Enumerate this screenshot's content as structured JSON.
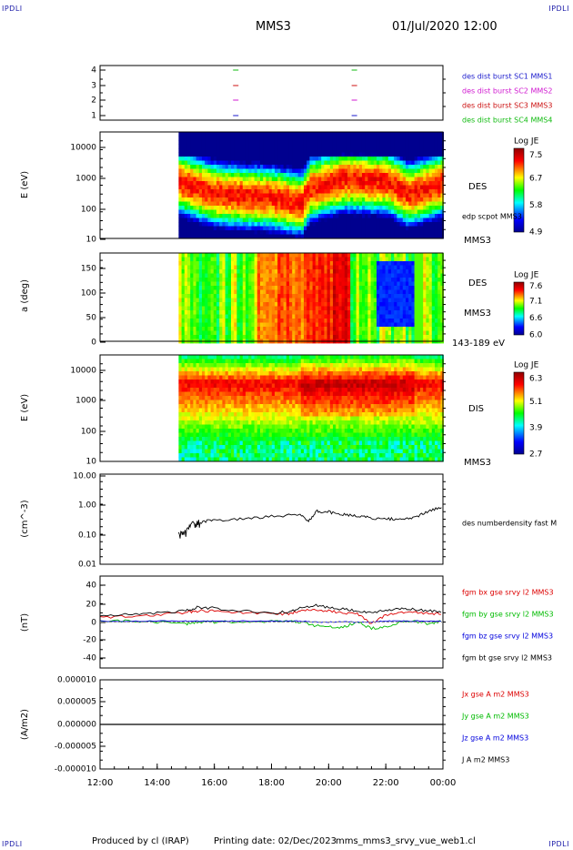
{
  "header": {
    "corner": "IPDLI",
    "title": "MMS3",
    "date": "01/Jul/2020 12:00"
  },
  "footer": {
    "produced_by": "Produced by cl (IRAP)",
    "printing_date": "Printing date: 02/Dec/2023",
    "file": "mms_mms3_srvy_vue_web1.cl"
  },
  "colors": {
    "sc1": "#1a1acc",
    "sc2": "#d019d0",
    "sc3": "#cc1111",
    "sc4": "#11bb11",
    "bx": "#dd0000",
    "by": "#00bb00",
    "bz": "#0000dd",
    "bt": "#000000"
  },
  "panels": {
    "burst": {
      "ticks": [
        "4",
        "3",
        "2",
        "1"
      ],
      "legend": [
        "des dist burst SC1 MMS1",
        "des dist burst SC2 MMS2",
        "des dist burst SC3 MMS3",
        "des dist burst SC4 MMS4"
      ]
    },
    "des_energy": {
      "ylabel": "E (eV)",
      "ticks": [
        "10000",
        "1000",
        "100",
        "10"
      ],
      "name": "DES",
      "extra": "edp scpot MMS3",
      "sc": "MMS3",
      "cb_title": "Log JE",
      "cb_ticks": [
        "7.5",
        "6.7",
        "5.8",
        "4.9"
      ]
    },
    "des_pad": {
      "ylabel": "a (deg)",
      "ticks": [
        "150",
        "100",
        "50",
        "0"
      ],
      "name": "DES",
      "sc": "MMS3",
      "range": "143-189 eV",
      "cb_title": "Log JE",
      "cb_ticks": [
        "7.6",
        "7.1",
        "6.6",
        "6.0"
      ]
    },
    "dis_energy": {
      "ylabel": "E (eV)",
      "ticks": [
        "10000",
        "1000",
        "100",
        "10"
      ],
      "name": "DIS",
      "sc": "MMS3",
      "cb_title": "Log JE",
      "cb_ticks": [
        "6.3",
        "5.1",
        "3.9",
        "2.7"
      ]
    },
    "density": {
      "ylabel": "(cm^-3)",
      "ticks": [
        "10.00",
        "1.00",
        "0.10",
        "0.01"
      ],
      "legend": "des numberdensity fast M"
    },
    "fgm": {
      "ylabel": "(nT)",
      "ticks": [
        "40",
        "20",
        "0",
        "-20",
        "-40"
      ],
      "legend": [
        "fgm bx gse srvy l2 MMS3",
        "fgm by gse srvy l2 MMS3",
        "fgm bz gse srvy l2 MMS3",
        "fgm bt gse srvy l2 MMS3"
      ]
    },
    "current": {
      "ylabel": "(A/m2)",
      "ticks": [
        "0.000010",
        "0.000005",
        "0.000000",
        "-0.000005",
        "-0.000010"
      ],
      "legend": [
        "Jx gse A m2 MMS3",
        "Jy gse A m2 MMS3",
        "Jz gse A m2 MMS3",
        "J A m2 MMS3"
      ]
    }
  },
  "time_axis": [
    "12:00",
    "14:00",
    "16:00",
    "18:00",
    "20:00",
    "22:00",
    "00:00"
  ],
  "chart_data": [
    {
      "type": "scatter",
      "title": "des dist burst",
      "x_hours": [
        16.75,
        16.75,
        16.75,
        16.75,
        20.9,
        20.9,
        20.9,
        20.9
      ],
      "y": [
        4,
        3,
        2,
        1,
        4,
        3,
        2,
        1
      ],
      "ylim": [
        0.5,
        4.5
      ],
      "xlim": [
        "12:00",
        "00:00"
      ]
    },
    {
      "type": "heatmap",
      "title": "DES energy spectrogram",
      "ylabel": "E (eV)",
      "y_scale": "log",
      "ylim": [
        10,
        30000
      ],
      "data_start": "14:45",
      "colorbar": {
        "label": "Log JE",
        "min": 4.9,
        "max": 7.5
      },
      "peak_energy_ev": {
        "14:45": 1000,
        "16:00": 400,
        "18:00": 300,
        "19:00": 200,
        "19:20": 600,
        "20:30": 1200,
        "22:00": 1000,
        "22:45": 400,
        "00:00": 900
      }
    },
    {
      "type": "heatmap",
      "title": "DES pitch angle 143-189 eV",
      "ylabel": "a (deg)",
      "ylim": [
        0,
        180
      ],
      "data_start": "14:45",
      "colorbar": {
        "label": "Log JE",
        "min": 6.0,
        "max": 7.6
      }
    },
    {
      "type": "heatmap",
      "title": "DIS energy spectrogram",
      "ylabel": "E (eV)",
      "y_scale": "log",
      "ylim": [
        10,
        30000
      ],
      "data_start": "14:45",
      "colorbar": {
        "label": "Log JE",
        "min": 2.7,
        "max": 6.3
      }
    },
    {
      "type": "line",
      "title": "des numberdensity fast",
      "ylabel": "(cm^-3)",
      "y_scale": "log",
      "ylim": [
        0.01,
        10
      ],
      "x_hours": [
        14.75,
        15.0,
        15.25,
        15.5,
        16.0,
        17.0,
        18.0,
        19.0,
        19.3,
        19.6,
        20.0,
        20.5,
        21.0,
        21.5,
        22.0,
        22.5,
        23.0,
        23.5,
        24.0
      ],
      "values": [
        0.09,
        0.12,
        0.2,
        0.25,
        0.3,
        0.32,
        0.4,
        0.45,
        0.28,
        0.6,
        0.55,
        0.45,
        0.4,
        0.35,
        0.32,
        0.33,
        0.35,
        0.6,
        0.8
      ]
    },
    {
      "type": "line",
      "title": "fgm gse srvy l2",
      "ylabel": "(nT)",
      "ylim": [
        -50,
        50
      ],
      "x_hours": [
        12.0,
        13.0,
        14.0,
        15.0,
        15.4,
        16.0,
        17.0,
        18.0,
        18.6,
        19.0,
        19.5,
        20.0,
        20.5,
        21.0,
        21.5,
        22.0,
        22.5,
        23.0,
        23.5,
        24.0
      ],
      "series": [
        {
          "name": "fgm bx gse srvy l2 MMS3",
          "values": [
            5,
            6,
            8,
            10,
            12,
            12,
            10,
            9,
            9,
            12,
            13,
            12,
            10,
            9,
            -2,
            8,
            10,
            11,
            9,
            9
          ]
        },
        {
          "name": "fgm by gse srvy l2 MMS3",
          "values": [
            1,
            1,
            0,
            -2,
            0,
            0,
            0,
            1,
            1,
            0,
            -4,
            -5,
            -6,
            0,
            -7,
            -5,
            0,
            1,
            -2,
            1
          ]
        },
        {
          "name": "fgm bz gse srvy l2 MMS3",
          "values": [
            1,
            1,
            1,
            1,
            1,
            1,
            1,
            1,
            1,
            1,
            0,
            0,
            0,
            0,
            0,
            1,
            1,
            1,
            1,
            1
          ]
        },
        {
          "name": "fgm bt gse srvy l2 MMS3",
          "values": [
            7,
            9,
            10,
            12,
            16,
            15,
            12,
            10,
            11,
            15,
            18,
            16,
            14,
            12,
            10,
            13,
            14,
            14,
            12,
            11
          ]
        }
      ]
    },
    {
      "type": "line",
      "title": "J A m2",
      "ylabel": "(A/m2)",
      "ylim": [
        -1e-05,
        1e-05
      ],
      "x_hours": [
        12,
        24
      ],
      "series": [
        {
          "name": "Jx gse A m2 MMS3",
          "values": [
            0,
            0
          ]
        },
        {
          "name": "Jy gse A m2 MMS3",
          "values": [
            0,
            0
          ]
        },
        {
          "name": "Jz gse A m2 MMS3",
          "values": [
            0,
            0
          ]
        },
        {
          "name": "J A m2 MMS3",
          "values": [
            0,
            0
          ]
        }
      ]
    }
  ]
}
